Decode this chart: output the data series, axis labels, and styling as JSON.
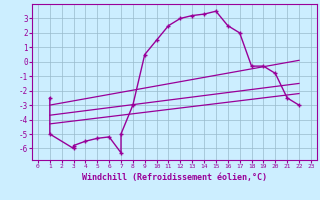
{
  "title": "",
  "xlabel": "Windchill (Refroidissement éolien,°C)",
  "bg_color": "#cceeff",
  "line_color": "#990099",
  "grid_color": "#99bbcc",
  "xlim": [
    -0.5,
    23.5
  ],
  "ylim": [
    -6.8,
    4.0
  ],
  "yticks": [
    3,
    2,
    1,
    0,
    -1,
    -2,
    -3,
    -4,
    -5,
    -6
  ],
  "xticks": [
    0,
    1,
    2,
    3,
    4,
    5,
    6,
    7,
    8,
    9,
    10,
    11,
    12,
    13,
    14,
    15,
    16,
    17,
    18,
    19,
    20,
    21,
    22,
    23
  ],
  "line1_x": [
    1,
    1,
    3,
    3,
    4,
    5,
    6,
    7,
    7,
    8,
    9,
    10,
    11,
    12,
    13,
    14,
    15,
    16,
    17,
    18,
    19,
    20,
    21,
    22
  ],
  "line1_y": [
    -2.5,
    -5.0,
    -6.0,
    -5.8,
    -5.5,
    -5.3,
    -5.2,
    -6.3,
    -5.0,
    -3.0,
    0.5,
    1.5,
    2.5,
    3.0,
    3.2,
    3.3,
    3.5,
    2.5,
    2.0,
    -0.3,
    -0.3,
    -0.8,
    -2.5,
    -3.0
  ],
  "line2_x": [
    1,
    22
  ],
  "line2_y": [
    -3.7,
    -1.5
  ],
  "line3_x": [
    1,
    22
  ],
  "line3_y": [
    -4.3,
    -2.2
  ],
  "line4_x": [
    1,
    22
  ],
  "line4_y": [
    -3.0,
    0.1
  ]
}
